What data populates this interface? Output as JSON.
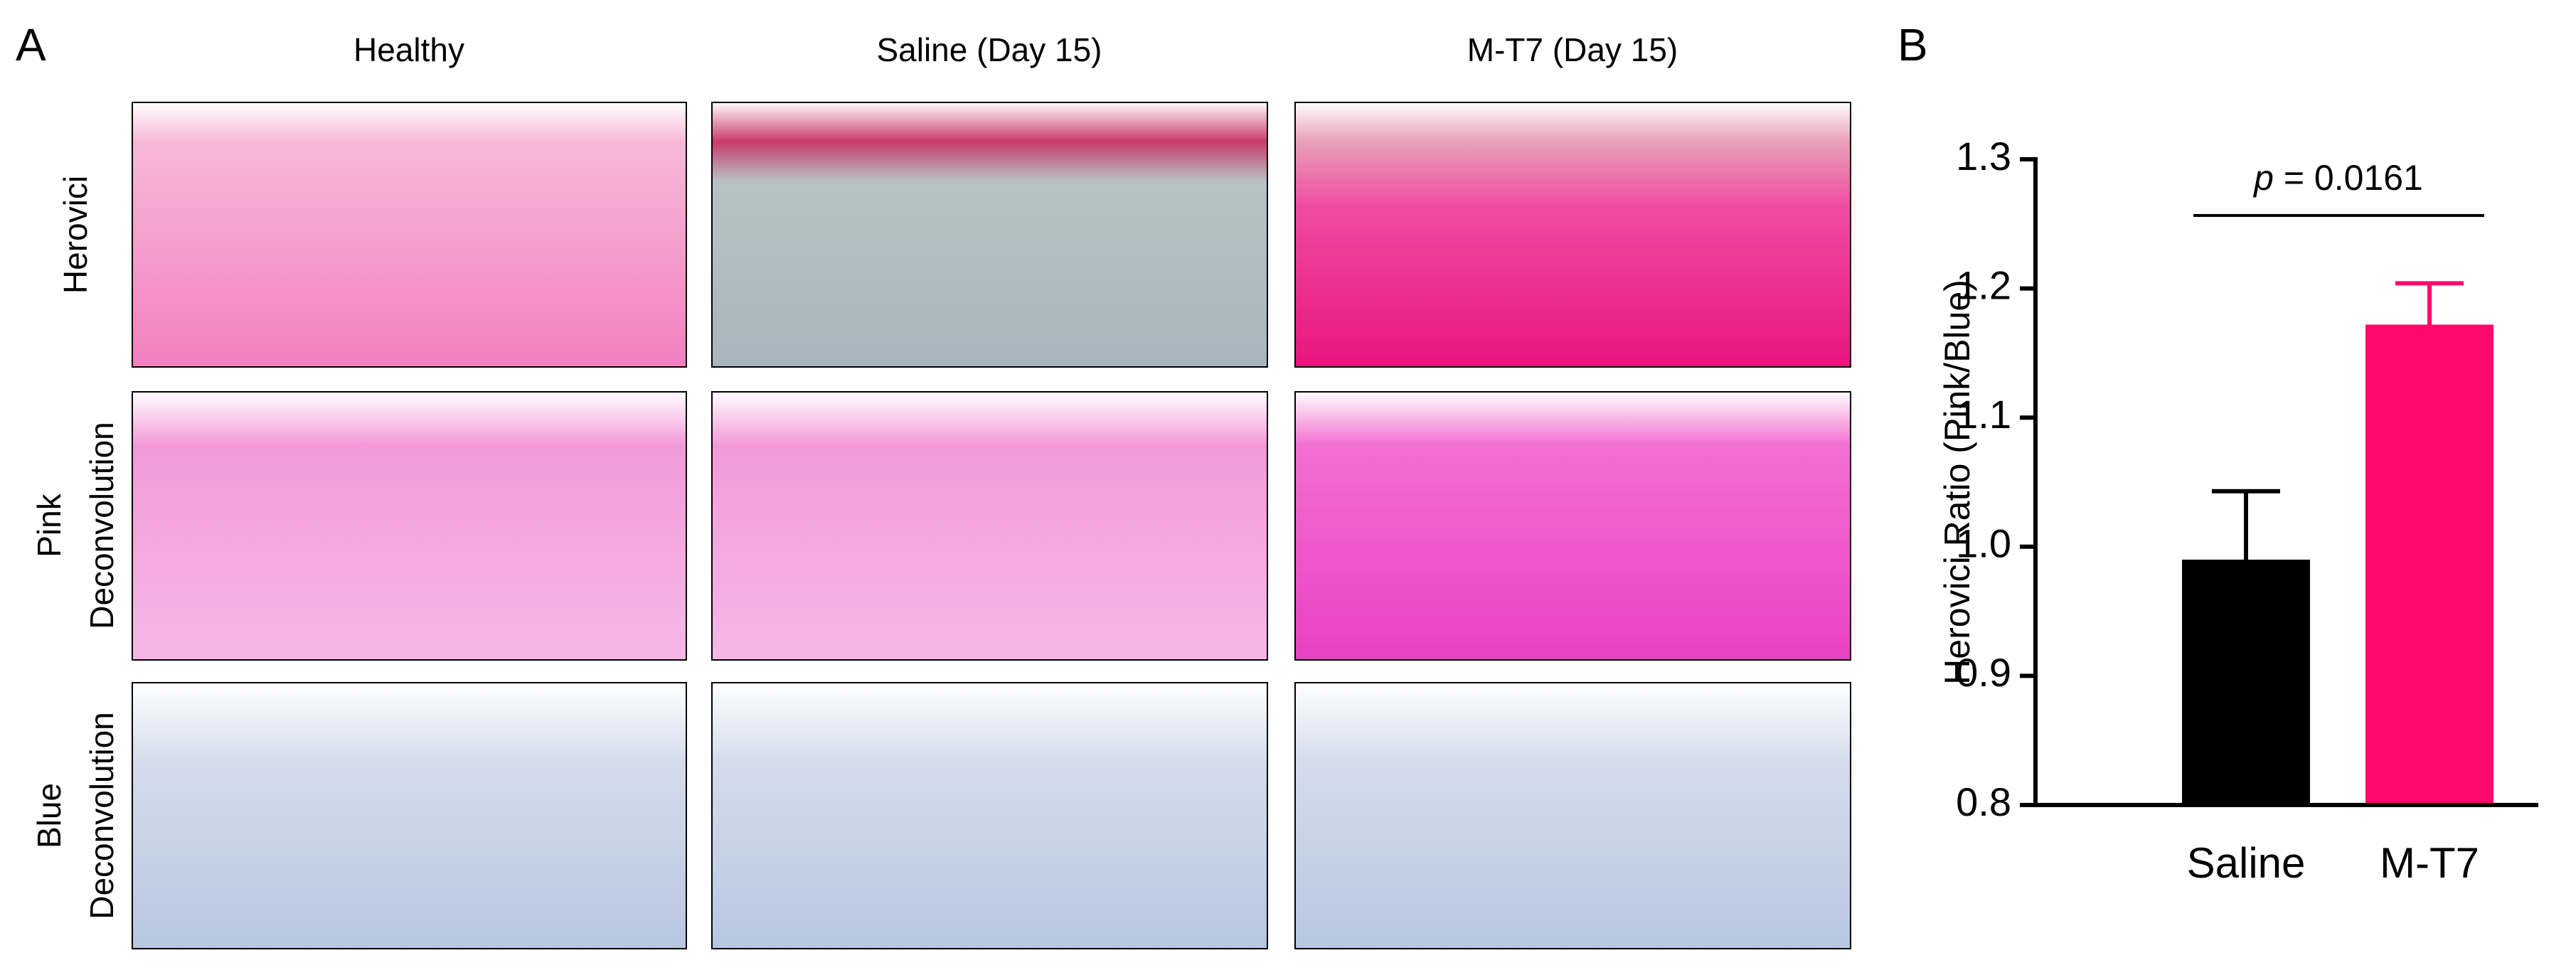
{
  "panel_a": {
    "label": "A",
    "columns": [
      "Healthy",
      "Saline (Day 15)",
      "M-T7 (Day 15)"
    ],
    "rows": [
      [
        "Herovici"
      ],
      [
        "Pink",
        "Deconvolution"
      ],
      [
        "Blue",
        "Deconvolution"
      ]
    ]
  },
  "panel_b": {
    "label": "B"
  },
  "chart_data": {
    "type": "bar",
    "y_label": "Herovici Ratio (Pink/Blue)",
    "categories": [
      "Saline",
      "M-T7"
    ],
    "values": [
      0.99,
      1.172
    ],
    "errors": [
      0.053,
      0.032
    ],
    "colors": [
      "#000000",
      "#ff0a6c"
    ],
    "ylim": [
      0.8,
      1.3
    ],
    "yticks": [
      0.8,
      0.9,
      {
        "value": 1,
        "label": "1.0"
      },
      1.1,
      1.2,
      1.3
    ],
    "annotation": {
      "italic": "p",
      "text": " = 0.0161"
    }
  }
}
